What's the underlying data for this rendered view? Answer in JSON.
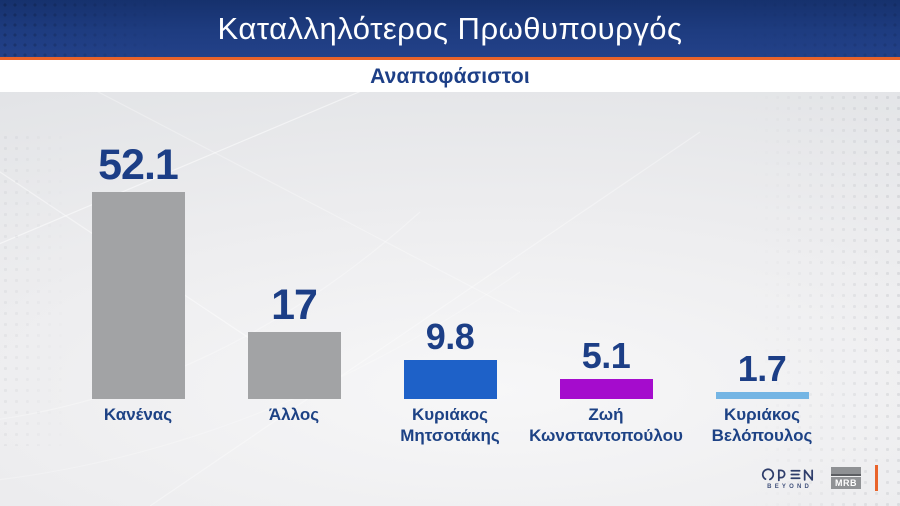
{
  "header": {
    "title": "Καταλληλότερος Πρωθυπουργός",
    "subtitle": "Αναποφάσιστοι"
  },
  "chart_data": {
    "type": "bar",
    "title": "Καταλληλότερος Πρωθυπουργός",
    "subtitle": "Αναποφάσιστοι",
    "categories": [
      "Κανένας",
      "Άλλος",
      "Κυριάκος Μητσοτάκης",
      "Ζωή Κωνσταντοπούλου",
      "Κυριάκος Βελόπουλος"
    ],
    "values": [
      52.1,
      17,
      9.8,
      5.1,
      1.7
    ],
    "value_labels": [
      "52.1",
      "17",
      "9.8",
      "5.1",
      "1.7"
    ],
    "bar_colors": [
      "#a2a3a5",
      "#a2a3a5",
      "#1e61c8",
      "#a50ccd",
      "#74b5e4"
    ],
    "grid": false,
    "legend": false,
    "axes_visible": false,
    "value_text_color": "#1c3e86",
    "label_text_color": "#1d4285",
    "accent_color": "#e9632a"
  },
  "footer": {
    "open_label": "OPEN",
    "open_tagline": "BEYOND",
    "mrb_label": "MRB"
  }
}
